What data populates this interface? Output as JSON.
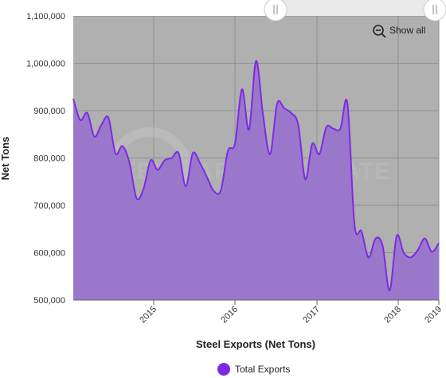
{
  "chart_data": {
    "type": "area",
    "title": "",
    "xlabel": "Steel Exports (Net Tons)",
    "ylabel": "Net Tons",
    "ylim": [
      500000,
      1100000
    ],
    "y_ticks": [
      "1,100,000",
      "1,000,000",
      "900,000",
      "800,000",
      "700,000",
      "600,000",
      "500,000"
    ],
    "x_ticks": [
      "2015",
      "2016",
      "2017",
      "2018",
      "2019"
    ],
    "grid": true,
    "legend_position": "bottom",
    "series": [
      {
        "name": "Total Exports",
        "color": "#7b2be3",
        "fill": "#9b77cc",
        "points": [
          [
            "2014-01",
            925000
          ],
          [
            "2014-02",
            880000
          ],
          [
            "2014-03",
            895000
          ],
          [
            "2014-04",
            845000
          ],
          [
            "2014-05",
            870000
          ],
          [
            "2014-06",
            885000
          ],
          [
            "2014-07",
            810000
          ],
          [
            "2014-08",
            825000
          ],
          [
            "2014-09",
            790000
          ],
          [
            "2014-10",
            715000
          ],
          [
            "2014-11",
            735000
          ],
          [
            "2014-12",
            795000
          ],
          [
            "2015-01",
            775000
          ],
          [
            "2015-02",
            795000
          ],
          [
            "2015-03",
            800000
          ],
          [
            "2015-04",
            810000
          ],
          [
            "2015-05",
            740000
          ],
          [
            "2015-06",
            810000
          ],
          [
            "2015-07",
            790000
          ],
          [
            "2015-08",
            760000
          ],
          [
            "2015-09",
            730000
          ],
          [
            "2015-10",
            732000
          ],
          [
            "2015-11",
            815000
          ],
          [
            "2015-12",
            830000
          ],
          [
            "2016-01",
            945000
          ],
          [
            "2016-02",
            860000
          ],
          [
            "2016-03",
            1005000
          ],
          [
            "2016-04",
            890000
          ],
          [
            "2016-05",
            808000
          ],
          [
            "2016-06",
            915000
          ],
          [
            "2016-07",
            905000
          ],
          [
            "2016-08",
            895000
          ],
          [
            "2016-09",
            870000
          ],
          [
            "2016-10",
            755000
          ],
          [
            "2016-11",
            830000
          ],
          [
            "2016-12",
            808000
          ],
          [
            "2017-01",
            865000
          ],
          [
            "2017-02",
            862000
          ],
          [
            "2017-03",
            862000
          ],
          [
            "2017-04",
            915000
          ],
          [
            "2017-05",
            660000
          ],
          [
            "2017-06",
            645000
          ],
          [
            "2017-07",
            590000
          ],
          [
            "2017-08",
            630000
          ],
          [
            "2017-09",
            615000
          ],
          [
            "2017-10",
            520000
          ],
          [
            "2017-11",
            635000
          ],
          [
            "2017-12",
            600000
          ],
          [
            "2018-01",
            590000
          ],
          [
            "2018-02",
            605000
          ],
          [
            "2018-03",
            630000
          ],
          [
            "2018-04",
            602000
          ],
          [
            "2018-05",
            620000
          ]
        ]
      }
    ]
  },
  "controls": {
    "show_all_label": "Show all",
    "zoom_icon": "zoom-out-icon"
  },
  "watermark": {
    "brand_text": "STEEL MARKET UPDATE"
  }
}
